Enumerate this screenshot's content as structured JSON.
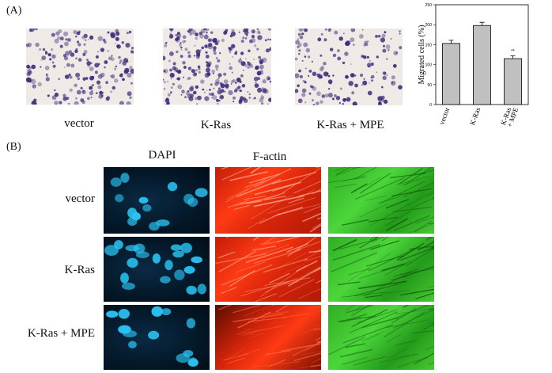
{
  "panel_a": {
    "label": "(A)",
    "captions": [
      "vector",
      "K-Ras",
      "K-Ras + MPE"
    ]
  },
  "panel_b": {
    "label": "(B)",
    "columns": [
      "DAPI",
      "F-actin",
      ""
    ],
    "rows": [
      "vector",
      "K-Ras",
      "K-Ras  + MPE"
    ]
  },
  "colors": {
    "transwell_bg": "#efeae6",
    "stain": "#3b2a7a",
    "bar": "#c0c0c0",
    "dapi_nuclei": "#29c3f2",
    "factin": "#ff3a14",
    "green": "#44cc33"
  },
  "chart_data": {
    "type": "bar",
    "categories": [
      "vector",
      "K-Ras",
      "K-Ras\n+ MPE"
    ],
    "values": [
      153,
      198,
      115
    ],
    "errors": [
      8,
      8,
      7
    ],
    "annotations": [
      {
        "category": "K-Ras\n+ MPE",
        "text": "**"
      }
    ],
    "ylabel": "Migrated cells (%)",
    "xlabel": "",
    "ylim": [
      0,
      250
    ],
    "yticks": [
      0,
      50,
      100,
      150,
      200,
      250
    ],
    "title": ""
  }
}
